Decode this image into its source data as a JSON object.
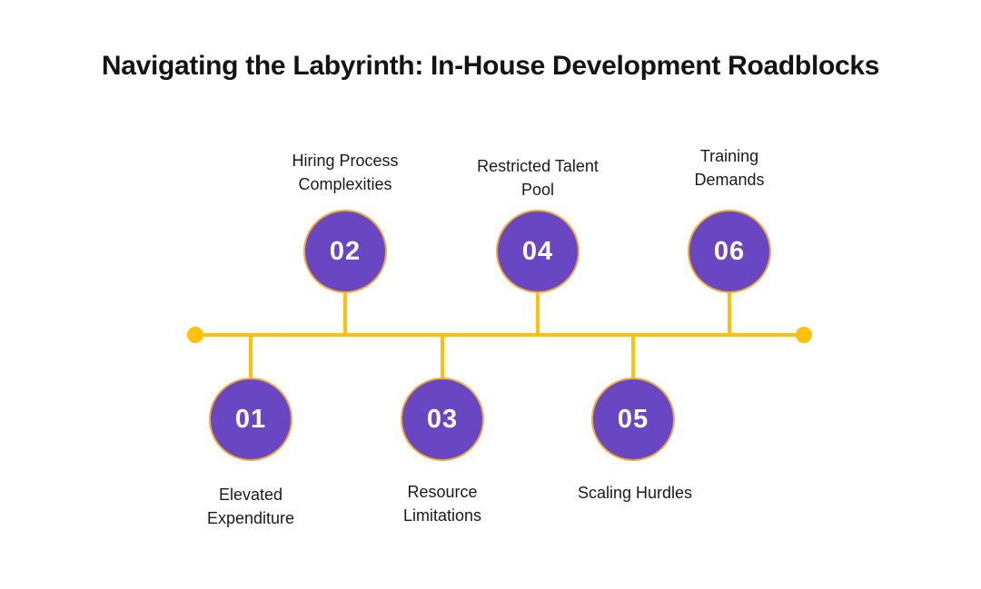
{
  "title": "Navigating the Labyrinth: In-House Development Roadblocks",
  "colors": {
    "background": "#FFFFFF",
    "title_text": "#141414",
    "label_text": "#1A1A1A",
    "timeline": "#FFC107",
    "circle_fill": "#6A47C2",
    "circle_border": "#F0A93C",
    "number_text": "#FFFFFF"
  },
  "timeline": {
    "items": [
      {
        "number": "01",
        "label": "Elevated\nExpenditure",
        "position": "below"
      },
      {
        "number": "02",
        "label": "Hiring Process\nComplexities",
        "position": "above"
      },
      {
        "number": "03",
        "label": "Resource\nLimitations",
        "position": "below"
      },
      {
        "number": "04",
        "label": "Restricted Talent\nPool",
        "position": "above"
      },
      {
        "number": "05",
        "label": "Scaling Hurdles",
        "position": "below"
      },
      {
        "number": "06",
        "label": "Training\nDemands",
        "position": "above"
      }
    ]
  }
}
